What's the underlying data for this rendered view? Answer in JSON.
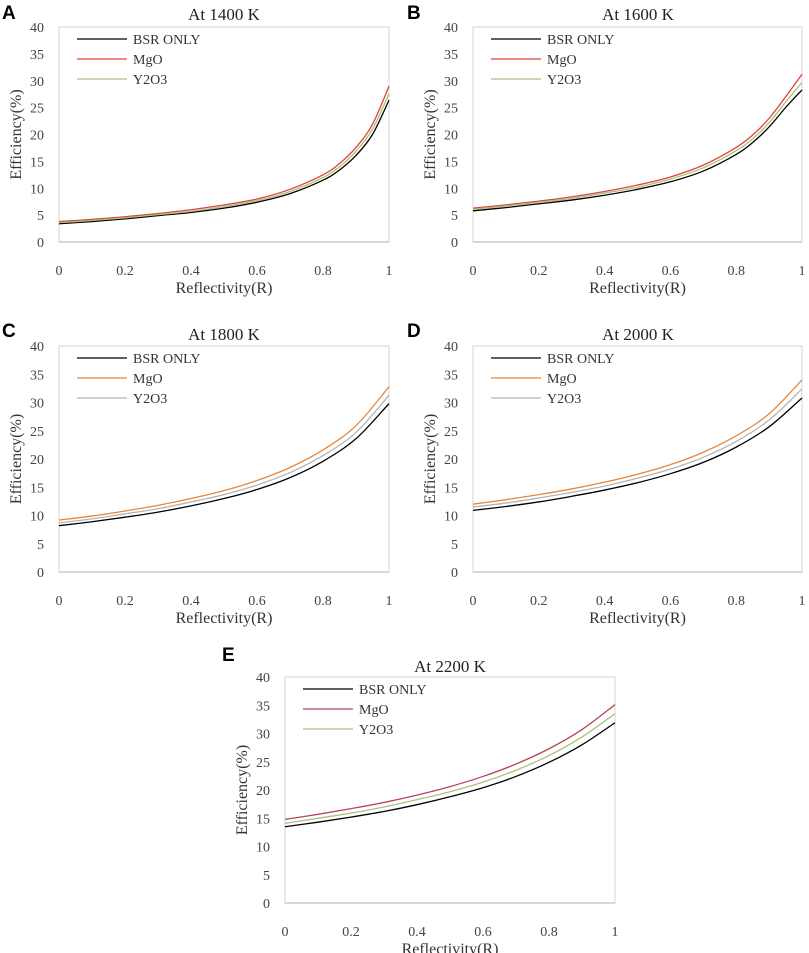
{
  "chart_data": [
    {
      "panel": "A",
      "type": "line",
      "title": "At 1400 K",
      "xlabel": "Reflectivity(R)",
      "ylabel": "Efficiency(%)",
      "xlim": [
        0,
        1
      ],
      "ylim": [
        0,
        40
      ],
      "x_ticks": [
        "0",
        "0.2",
        "0.4",
        "0.6",
        "0.8",
        "1"
      ],
      "y_ticks": [
        "0",
        "5",
        "10",
        "15",
        "20",
        "25",
        "30",
        "35",
        "40"
      ],
      "legend_position": "top-left",
      "series": [
        {
          "name": "BSR ONLY",
          "color": "#000000",
          "x": [
            0,
            0.1,
            0.2,
            0.3,
            0.4,
            0.5,
            0.6,
            0.7,
            0.8,
            0.85,
            0.9,
            0.95,
            1
          ],
          "y": [
            3.4,
            3.8,
            4.3,
            4.9,
            5.5,
            6.3,
            7.4,
            9.0,
            11.5,
            13.4,
            16.1,
            20.0,
            26.4
          ]
        },
        {
          "name": "MgO",
          "color": "#e0423a",
          "x": [
            0,
            0.1,
            0.2,
            0.3,
            0.4,
            0.5,
            0.6,
            0.7,
            0.8,
            0.85,
            0.9,
            0.95,
            1
          ],
          "y": [
            3.8,
            4.2,
            4.7,
            5.3,
            6.0,
            6.9,
            8.0,
            9.8,
            12.5,
            14.6,
            17.6,
            21.9,
            29.0
          ]
        },
        {
          "name": "Y2O3",
          "color": "#a9c27a",
          "x": [
            0,
            0.1,
            0.2,
            0.3,
            0.4,
            0.5,
            0.6,
            0.7,
            0.8,
            0.85,
            0.9,
            0.95,
            1
          ],
          "y": [
            3.6,
            4.0,
            4.5,
            5.1,
            5.7,
            6.6,
            7.7,
            9.4,
            12.0,
            14.0,
            16.9,
            21.0,
            27.6
          ]
        }
      ]
    },
    {
      "panel": "B",
      "type": "line",
      "title": "At 1600 K",
      "xlabel": "Reflectivity(R)",
      "ylabel": "Efficiency(%)",
      "xlim": [
        0,
        1
      ],
      "ylim": [
        0,
        40
      ],
      "x_ticks": [
        "0",
        "0.2",
        "0.4",
        "0.6",
        "0.8",
        "1"
      ],
      "y_ticks": [
        "0",
        "5",
        "10",
        "15",
        "20",
        "25",
        "30",
        "35",
        "40"
      ],
      "legend_position": "top-left",
      "series": [
        {
          "name": "BSR ONLY",
          "color": "#000000",
          "x": [
            0,
            0.1,
            0.2,
            0.3,
            0.4,
            0.5,
            0.6,
            0.7,
            0.8,
            0.85,
            0.9,
            0.95,
            1
          ],
          "y": [
            5.8,
            6.4,
            7.1,
            7.8,
            8.7,
            9.8,
            11.2,
            13.2,
            16.3,
            18.5,
            21.4,
            25.0,
            28.3
          ]
        },
        {
          "name": "MgO",
          "color": "#e0423a",
          "x": [
            0,
            0.1,
            0.2,
            0.3,
            0.4,
            0.5,
            0.6,
            0.7,
            0.8,
            0.85,
            0.9,
            0.95,
            1
          ],
          "y": [
            6.3,
            6.9,
            7.6,
            8.4,
            9.4,
            10.6,
            12.1,
            14.3,
            17.6,
            19.9,
            23.0,
            27.0,
            31.2
          ]
        },
        {
          "name": "Y2O3",
          "color": "#a9c27a",
          "x": [
            0,
            0.1,
            0.2,
            0.3,
            0.4,
            0.5,
            0.6,
            0.7,
            0.8,
            0.85,
            0.9,
            0.95,
            1
          ],
          "y": [
            6.1,
            6.7,
            7.4,
            8.1,
            9.1,
            10.2,
            11.7,
            13.8,
            17.0,
            19.2,
            22.2,
            26.0,
            29.7
          ]
        }
      ]
    },
    {
      "panel": "C",
      "type": "line",
      "title": "At 1800 K",
      "xlabel": "Reflectivity(R)",
      "ylabel": "Efficiency(%)",
      "xlim": [
        0,
        1
      ],
      "ylim": [
        0,
        40
      ],
      "x_ticks": [
        "0",
        "0.2",
        "0.4",
        "0.6",
        "0.8",
        "1"
      ],
      "y_ticks": [
        "0",
        "5",
        "10",
        "15",
        "20",
        "25",
        "30",
        "35",
        "40"
      ],
      "legend_position": "top-left",
      "series": [
        {
          "name": "BSR ONLY",
          "color": "#000000",
          "x": [
            0,
            0.1,
            0.2,
            0.3,
            0.4,
            0.5,
            0.6,
            0.7,
            0.8,
            0.9,
            1
          ],
          "y": [
            8.2,
            8.9,
            9.7,
            10.6,
            11.7,
            13.0,
            14.6,
            16.7,
            19.6,
            23.6,
            29.8
          ]
        },
        {
          "name": "MgO",
          "color": "#e8873a",
          "x": [
            0,
            0.1,
            0.2,
            0.3,
            0.4,
            0.5,
            0.6,
            0.7,
            0.8,
            0.9,
            1
          ],
          "y": [
            9.2,
            9.9,
            10.8,
            11.8,
            13.0,
            14.4,
            16.2,
            18.5,
            21.6,
            25.9,
            32.8
          ]
        },
        {
          "name": "Y2O3",
          "color": "#b4b4b4",
          "x": [
            0,
            0.1,
            0.2,
            0.3,
            0.4,
            0.5,
            0.6,
            0.7,
            0.8,
            0.9,
            1
          ],
          "y": [
            8.7,
            9.4,
            10.3,
            11.2,
            12.4,
            13.7,
            15.4,
            17.6,
            20.6,
            24.7,
            31.3
          ]
        }
      ]
    },
    {
      "panel": "D",
      "type": "line",
      "title": "At 2000 K",
      "xlabel": "Reflectivity(R)",
      "ylabel": "Efficiency(%)",
      "xlim": [
        0,
        1
      ],
      "ylim": [
        0,
        40
      ],
      "x_ticks": [
        "0",
        "0.2",
        "0.4",
        "0.6",
        "0.8",
        "1"
      ],
      "y_ticks": [
        "0",
        "5",
        "10",
        "15",
        "20",
        "25",
        "30",
        "35",
        "40"
      ],
      "legend_position": "top-left",
      "series": [
        {
          "name": "BSR ONLY",
          "color": "#000000",
          "x": [
            0,
            0.1,
            0.2,
            0.3,
            0.4,
            0.5,
            0.6,
            0.7,
            0.8,
            0.9,
            1
          ],
          "y": [
            10.9,
            11.6,
            12.4,
            13.4,
            14.5,
            15.8,
            17.4,
            19.4,
            22.1,
            25.7,
            30.8
          ]
        },
        {
          "name": "MgO",
          "color": "#e8873a",
          "x": [
            0,
            0.1,
            0.2,
            0.3,
            0.4,
            0.5,
            0.6,
            0.7,
            0.8,
            0.9,
            1
          ],
          "y": [
            12.0,
            12.8,
            13.7,
            14.7,
            15.9,
            17.3,
            19.0,
            21.2,
            24.1,
            28.0,
            34.0
          ]
        },
        {
          "name": "Y2O3",
          "color": "#b4b4b4",
          "x": [
            0,
            0.1,
            0.2,
            0.3,
            0.4,
            0.5,
            0.6,
            0.7,
            0.8,
            0.9,
            1
          ],
          "y": [
            11.5,
            12.2,
            13.1,
            14.1,
            15.2,
            16.6,
            18.2,
            20.3,
            23.1,
            26.9,
            32.4
          ]
        }
      ]
    },
    {
      "panel": "E",
      "type": "line",
      "title": "At 2200 K",
      "xlabel": "Reflectivity(R)",
      "ylabel": "Efficiency(%)",
      "xlim": [
        0,
        1
      ],
      "ylim": [
        0,
        40
      ],
      "x_ticks": [
        "0",
        "0.2",
        "0.4",
        "0.6",
        "0.8",
        "1"
      ],
      "y_ticks": [
        "0",
        "5",
        "10",
        "15",
        "20",
        "25",
        "30",
        "35",
        "40"
      ],
      "legend_position": "top-left",
      "series": [
        {
          "name": "BSR ONLY",
          "color": "#000000",
          "x": [
            0,
            0.1,
            0.2,
            0.3,
            0.4,
            0.5,
            0.6,
            0.7,
            0.8,
            0.9,
            1
          ],
          "y": [
            13.5,
            14.3,
            15.2,
            16.2,
            17.4,
            18.8,
            20.4,
            22.4,
            24.9,
            28.0,
            31.9
          ]
        },
        {
          "name": "MgO",
          "color": "#b5445e",
          "x": [
            0,
            0.1,
            0.2,
            0.3,
            0.4,
            0.5,
            0.6,
            0.7,
            0.8,
            0.9,
            1
          ],
          "y": [
            14.8,
            15.7,
            16.7,
            17.8,
            19.1,
            20.6,
            22.4,
            24.6,
            27.3,
            30.7,
            35.1
          ]
        },
        {
          "name": "Y2O3",
          "color": "#a9c27a",
          "x": [
            0,
            0.1,
            0.2,
            0.3,
            0.4,
            0.5,
            0.6,
            0.7,
            0.8,
            0.9,
            1
          ],
          "y": [
            14.1,
            15.0,
            15.9,
            17.0,
            18.3,
            19.7,
            21.4,
            23.5,
            26.1,
            29.4,
            33.5
          ]
        }
      ]
    }
  ]
}
